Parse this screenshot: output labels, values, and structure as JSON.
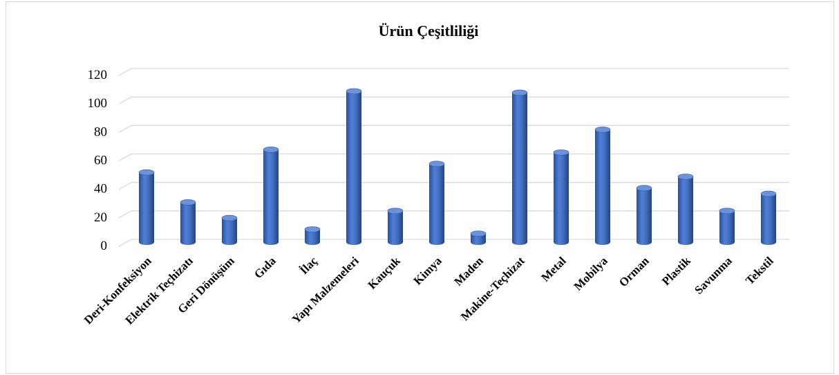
{
  "chart_data": {
    "type": "bar",
    "title": "Ürün Çeşitliliği",
    "categories": [
      "Deri-Konfeksiyon",
      "Elektrik Teçhizatı",
      "Geri Dönüşüm",
      "Gıda",
      "İlaç",
      "Yapı Malzemeleri",
      "Kauçuk",
      "Kimya",
      "Maden",
      "Makine-Teçhizat",
      "Metal",
      "Mobilya",
      "Orman",
      "Plastik",
      "Savunma",
      "Tekstil"
    ],
    "values": [
      48,
      27,
      16,
      64,
      8,
      105,
      21,
      54,
      5,
      104,
      62,
      78,
      37,
      45,
      21,
      33
    ],
    "ylim": [
      0,
      120
    ],
    "yticks": [
      "0",
      "20",
      "40",
      "60",
      "80",
      "100",
      "120"
    ],
    "grid": true,
    "bar_style": "3d-cylinder",
    "colors": {
      "bar": "#4472c4",
      "bar_dark": "#2f55a0",
      "bar_light": "#6a93dc",
      "grid": "#d9d9d9"
    }
  }
}
